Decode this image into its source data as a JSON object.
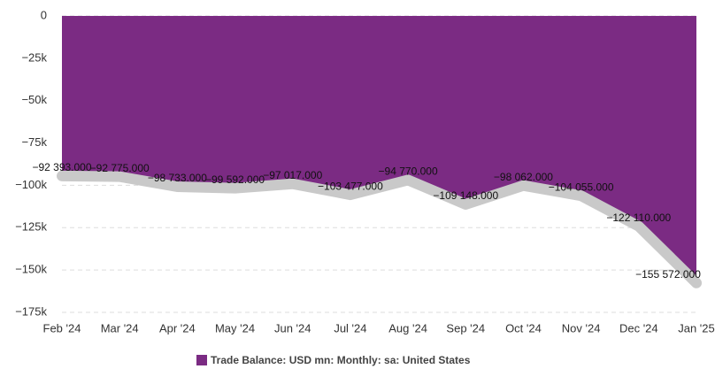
{
  "chart_data": {
    "type": "area",
    "categories": [
      "Feb '24",
      "Mar '24",
      "Apr '24",
      "May '24",
      "Jun '24",
      "Jul '24",
      "Aug '24",
      "Sep '24",
      "Oct '24",
      "Nov '24",
      "Dec '24",
      "Jan '25"
    ],
    "series": [
      {
        "name": "Trade Balance: USD mn: Monthly: sa: United States",
        "color": "#7b2b83",
        "values": [
          -92393,
          -92775,
          -98733,
          -99592,
          -97017,
          -103477,
          -94770,
          -109148,
          -98062,
          -104055,
          -122110,
          -155572
        ],
        "value_labels": [
          "−92 393.000",
          "−92 775.000",
          "−98 733.000",
          "−99 592.000",
          "−97 017.000",
          "−103 477.000",
          "−94 770.000",
          "−109 148.000",
          "−98 062.000",
          "−104 055.000",
          "−122 110.000",
          "−155 572.000"
        ]
      }
    ],
    "ylim": [
      -175000,
      0
    ],
    "yticks": [
      {
        "value": -175000,
        "label": "−175k"
      },
      {
        "value": -150000,
        "label": "−150k"
      },
      {
        "value": -125000,
        "label": "−125k"
      },
      {
        "value": -100000,
        "label": "−100k"
      },
      {
        "value": -75000,
        "label": "−75k"
      },
      {
        "value": -50000,
        "label": "−50k"
      },
      {
        "value": -25000,
        "label": "−25k"
      },
      0
    ],
    "grid": true
  }
}
